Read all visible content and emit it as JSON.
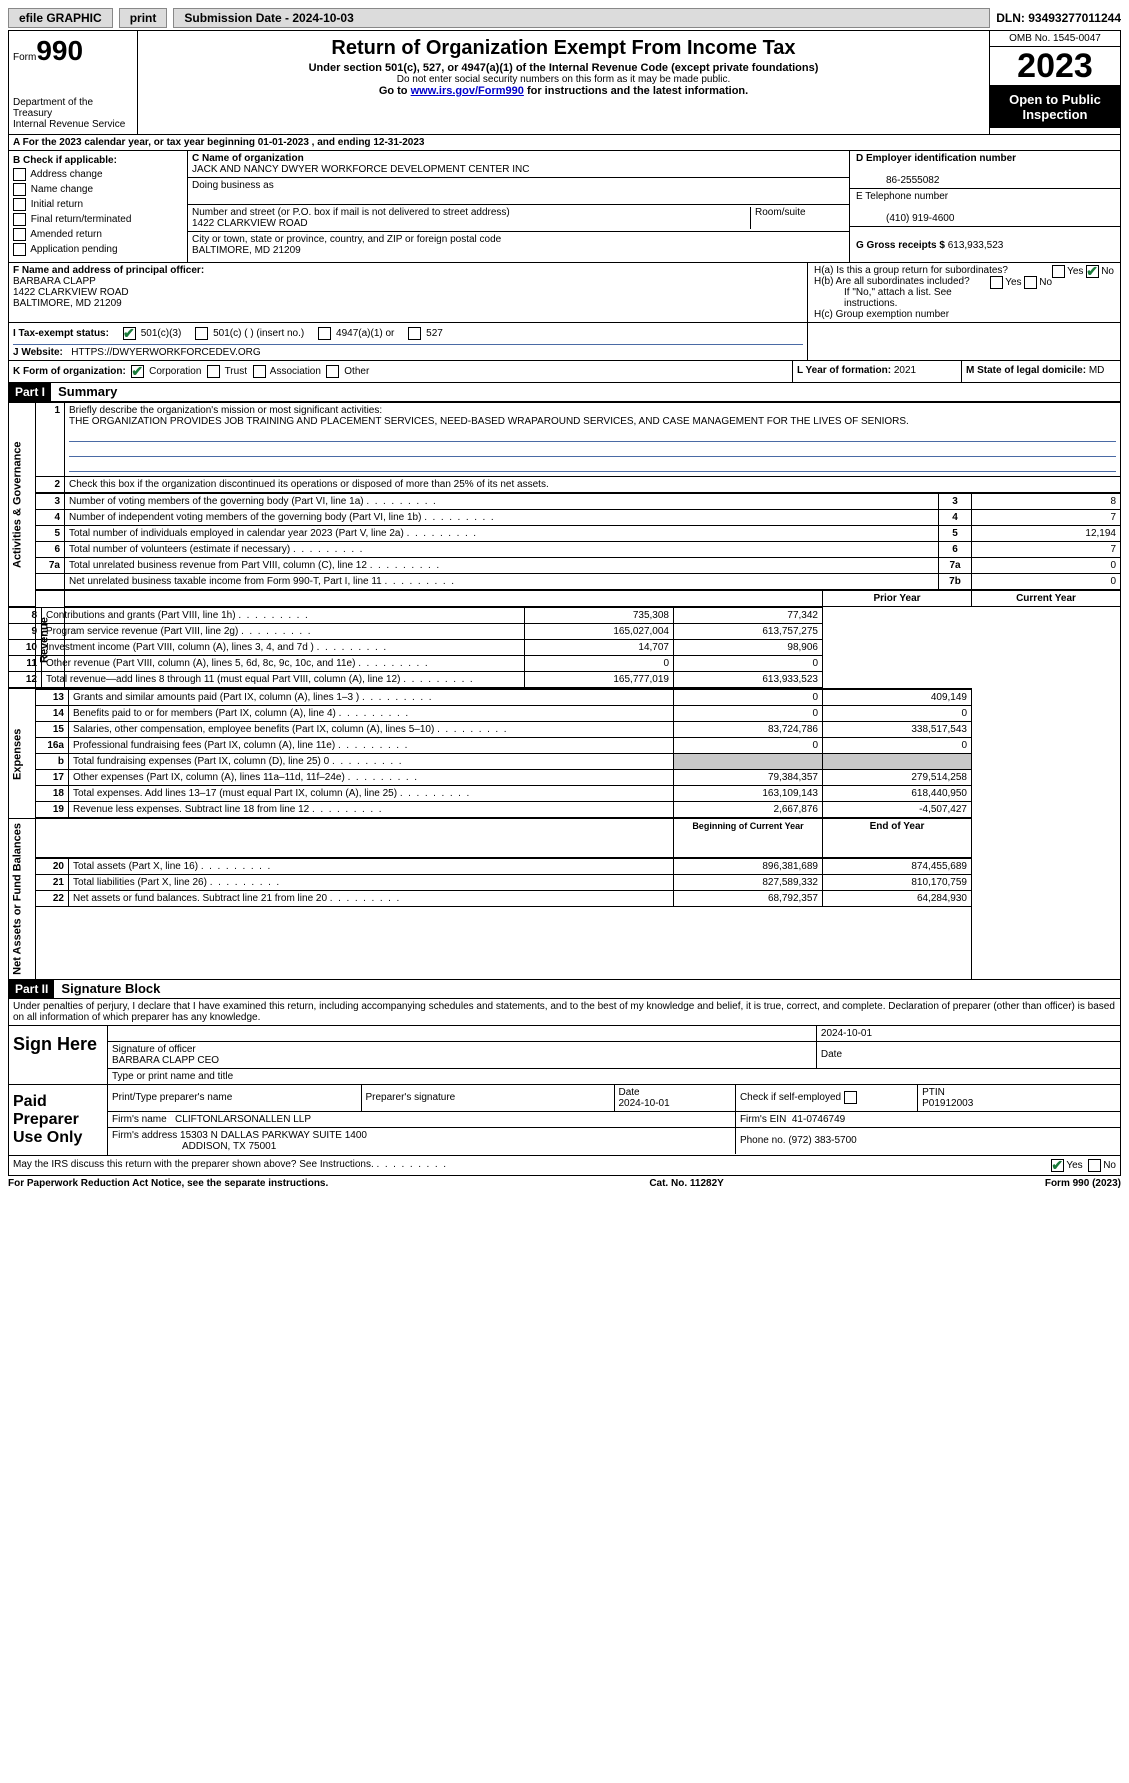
{
  "topbar": {
    "efile": "efile GRAPHIC",
    "print": "print",
    "submission": "Submission Date - 2024-10-03",
    "dln": "DLN: 93493277011244"
  },
  "header": {
    "form_label": "Form",
    "form_number": "990",
    "title": "Return of Organization Exempt From Income Tax",
    "subtitle": "Under section 501(c), 527, or 4947(a)(1) of the Internal Revenue Code (except private foundations)",
    "note": "Do not enter social security numbers on this form as it may be made public.",
    "goto_prefix": "Go to ",
    "goto_link": "www.irs.gov/Form990",
    "goto_suffix": " for instructions and the latest information.",
    "dept": "Department of the Treasury",
    "irs": "Internal Revenue Service",
    "omb": "OMB No. 1545-0047",
    "year": "2023",
    "open_public": "Open to Public Inspection"
  },
  "section_a": "A  For the 2023 calendar year, or tax year beginning 01-01-2023   , and ending 12-31-2023",
  "section_b": {
    "label": "B Check if applicable:",
    "opts": [
      "Address change",
      "Name change",
      "Initial return",
      "Final return/terminated",
      "Amended return",
      "Application pending"
    ]
  },
  "section_c": {
    "name_label": "C Name of organization",
    "name": "JACK AND NANCY DWYER WORKFORCE DEVELOPMENT CENTER INC",
    "dba_label": "Doing business as",
    "dba": "",
    "street_label": "Number and street (or P.O. box if mail is not delivered to street address)",
    "street": "1422 CLARKVIEW ROAD",
    "suite_label": "Room/suite",
    "city_label": "City or town, state or province, country, and ZIP or foreign postal code",
    "city": "BALTIMORE, MD  21209"
  },
  "section_d": {
    "label": "D Employer identification number",
    "value": "86-2555082"
  },
  "section_e": {
    "label": "E Telephone number",
    "value": "(410) 919-4600"
  },
  "section_g": {
    "label": "G Gross receipts $",
    "value": "613,933,523"
  },
  "section_f": {
    "label": "F Name and address of principal officer:",
    "name": "BARBARA CLAPP",
    "addr1": "1422 CLARKVIEW ROAD",
    "addr2": "BALTIMORE, MD  21209"
  },
  "section_h": {
    "ha": "H(a)  Is this a group return for subordinates?",
    "ha_yes": "Yes",
    "ha_no": "No",
    "hb": "H(b)  Are all subordinates included?",
    "hb_yes": "Yes",
    "hb_no": "No",
    "hb_note": "If \"No,\" attach a list. See instructions.",
    "hc": "H(c)  Group exemption number"
  },
  "section_i": {
    "label": "I   Tax-exempt status:",
    "opts": [
      "501(c)(3)",
      "501(c) (  ) (insert no.)",
      "4947(a)(1) or",
      "527"
    ]
  },
  "section_j": {
    "label": "J   Website:",
    "value": "HTTPS://DWYERWORKFORCEDEV.ORG"
  },
  "section_k": {
    "label": "K Form of organization:",
    "opts": [
      "Corporation",
      "Trust",
      "Association",
      "Other"
    ]
  },
  "section_l": {
    "label": "L Year of formation:",
    "value": "2021"
  },
  "section_m": {
    "label": "M State of legal domicile:",
    "value": "MD"
  },
  "part1": {
    "header": "Part I",
    "title": "Summary"
  },
  "mission": {
    "label": "Briefly describe the organization's mission or most significant activities:",
    "text": "THE ORGANIZATION PROVIDES JOB TRAINING AND PLACEMENT SERVICES, NEED-BASED WRAPAROUND SERVICES, AND CASE MANAGEMENT FOR THE LIVES OF SENIORS."
  },
  "line2": "Check this box       if the organization discontinued its operations or disposed of more than 25% of its net assets.",
  "governance": [
    {
      "n": "3",
      "t": "Number of voting members of the governing body (Part VI, line 1a)",
      "k": "3",
      "v": "8"
    },
    {
      "n": "4",
      "t": "Number of independent voting members of the governing body (Part VI, line 1b)",
      "k": "4",
      "v": "7"
    },
    {
      "n": "5",
      "t": "Total number of individuals employed in calendar year 2023 (Part V, line 2a)",
      "k": "5",
      "v": "12,194"
    },
    {
      "n": "6",
      "t": "Total number of volunteers (estimate if necessary)",
      "k": "6",
      "v": "7"
    },
    {
      "n": "7a",
      "t": "Total unrelated business revenue from Part VIII, column (C), line 12",
      "k": "7a",
      "v": "0"
    },
    {
      "n": "",
      "t": "Net unrelated business taxable income from Form 990-T, Part I, line 11",
      "k": "7b",
      "v": "0"
    }
  ],
  "col_headers": {
    "prior": "Prior Year",
    "current": "Current Year",
    "begin": "Beginning of Current Year",
    "end": "End of Year"
  },
  "revenue": [
    {
      "n": "8",
      "t": "Contributions and grants (Part VIII, line 1h)",
      "p": "735,308",
      "c": "77,342"
    },
    {
      "n": "9",
      "t": "Program service revenue (Part VIII, line 2g)",
      "p": "165,027,004",
      "c": "613,757,275"
    },
    {
      "n": "10",
      "t": "Investment income (Part VIII, column (A), lines 3, 4, and 7d )",
      "p": "14,707",
      "c": "98,906"
    },
    {
      "n": "11",
      "t": "Other revenue (Part VIII, column (A), lines 5, 6d, 8c, 9c, 10c, and 11e)",
      "p": "0",
      "c": "0"
    },
    {
      "n": "12",
      "t": "Total revenue—add lines 8 through 11 (must equal Part VIII, column (A), line 12)",
      "p": "165,777,019",
      "c": "613,933,523"
    }
  ],
  "expenses": [
    {
      "n": "13",
      "t": "Grants and similar amounts paid (Part IX, column (A), lines 1–3 )",
      "p": "0",
      "c": "409,149"
    },
    {
      "n": "14",
      "t": "Benefits paid to or for members (Part IX, column (A), line 4)",
      "p": "0",
      "c": "0"
    },
    {
      "n": "15",
      "t": "Salaries, other compensation, employee benefits (Part IX, column (A), lines 5–10)",
      "p": "83,724,786",
      "c": "338,517,543"
    },
    {
      "n": "16a",
      "t": "Professional fundraising fees (Part IX, column (A), line 11e)",
      "p": "0",
      "c": "0"
    },
    {
      "n": "b",
      "t": "Total fundraising expenses (Part IX, column (D), line 25) 0",
      "p": "",
      "c": "",
      "shaded": true
    },
    {
      "n": "17",
      "t": "Other expenses (Part IX, column (A), lines 11a–11d, 11f–24e)",
      "p": "79,384,357",
      "c": "279,514,258"
    },
    {
      "n": "18",
      "t": "Total expenses. Add lines 13–17 (must equal Part IX, column (A), line 25)",
      "p": "163,109,143",
      "c": "618,440,950"
    },
    {
      "n": "19",
      "t": "Revenue less expenses. Subtract line 18 from line 12",
      "p": "2,667,876",
      "c": "-4,507,427"
    }
  ],
  "netassets": [
    {
      "n": "20",
      "t": "Total assets (Part X, line 16)",
      "p": "896,381,689",
      "c": "874,455,689"
    },
    {
      "n": "21",
      "t": "Total liabilities (Part X, line 26)",
      "p": "827,589,332",
      "c": "810,170,759"
    },
    {
      "n": "22",
      "t": "Net assets or fund balances. Subtract line 21 from line 20",
      "p": "68,792,357",
      "c": "64,284,930"
    }
  ],
  "vlabels": {
    "gov": "Activities & Governance",
    "rev": "Revenue",
    "exp": "Expenses",
    "net": "Net Assets or Fund Balances"
  },
  "part2": {
    "header": "Part II",
    "title": "Signature Block"
  },
  "perjury": "Under penalties of perjury, I declare that I have examined this return, including accompanying schedules and statements, and to the best of my knowledge and belief, it is true, correct, and complete. Declaration of preparer (other than officer) is based on all information of which preparer has any knowledge.",
  "sign": {
    "here": "Sign Here",
    "sig_officer": "Signature of officer",
    "officer": "BARBARA CLAPP  CEO",
    "type_label": "Type or print name and title",
    "date_label": "Date",
    "date": "2024-10-01"
  },
  "paid": {
    "label": "Paid Preparer Use Only",
    "print_label": "Print/Type preparer's name",
    "sig_label": "Preparer's signature",
    "date_label": "Date",
    "date": "2024-10-01",
    "check_label": "Check          if self-employed",
    "ptin_label": "PTIN",
    "ptin": "P01912003",
    "firm_name_label": "Firm's name",
    "firm_name": "CLIFTONLARSONALLEN LLP",
    "firm_ein_label": "Firm's EIN",
    "firm_ein": "41-0746749",
    "firm_addr_label": "Firm's address",
    "firm_addr1": "15303 N DALLAS PARKWAY SUITE 1400",
    "firm_addr2": "ADDISON, TX  75001",
    "phone_label": "Phone no.",
    "phone": "(972) 383-5700"
  },
  "discuss": {
    "text": "May the IRS discuss this return with the preparer shown above? See Instructions.",
    "yes": "Yes",
    "no": "No"
  },
  "footer": {
    "left": "For Paperwork Reduction Act Notice, see the separate instructions.",
    "mid": "Cat. No. 11282Y",
    "right": "Form 990 (2023)"
  }
}
